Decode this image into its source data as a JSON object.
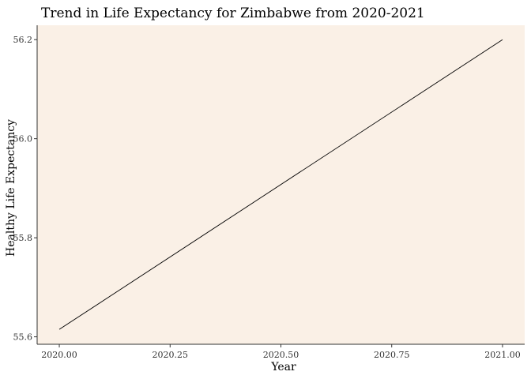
{
  "chart_data": {
    "type": "line",
    "title": "Trend in Life Expectancy for Zimbabwe from 2020-2021",
    "xlabel": "Year",
    "ylabel": "Healthy Life Expectancy",
    "x": [
      2020,
      2021
    ],
    "series": [
      {
        "values": [
          55.615,
          56.2
        ]
      }
    ],
    "xlim": [
      2019.95,
      2021.05
    ],
    "ylim": [
      55.585,
      56.229
    ],
    "x_ticks": [
      2020.0,
      2020.25,
      2020.5,
      2020.75,
      2021.0
    ],
    "x_tick_labels": [
      "2020.00",
      "2020.25",
      "2020.50",
      "2020.75",
      "2021.00"
    ],
    "y_ticks": [
      55.6,
      55.8,
      56.0,
      56.2
    ],
    "y_tick_labels": [
      "55.6",
      "55.8",
      "56.0",
      "56.2"
    ],
    "grid": false,
    "legend": "none",
    "colors": {
      "panel_background": "#faf0e6",
      "line": "#000000",
      "axis": "#333333"
    }
  }
}
